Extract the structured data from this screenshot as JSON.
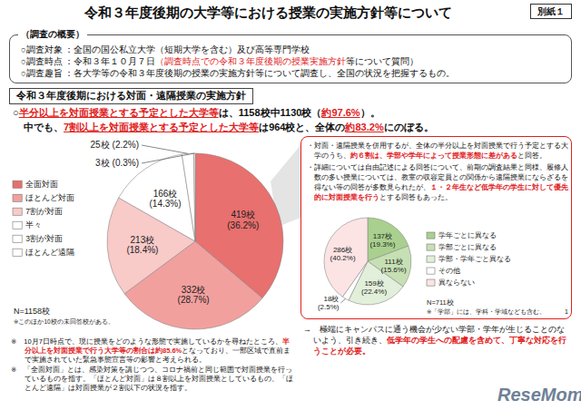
{
  "header": {
    "title": "令和３年度後期の大学等における授業の実施方針等について",
    "tag": "別紙１"
  },
  "overview": {
    "heading": "（調査の概要）",
    "lines": [
      {
        "runs": [
          {
            "text": "○調査対象 ：全国の国公私立大学（短期大学を含む）及び高等専門学校"
          }
        ]
      },
      {
        "runs": [
          {
            "text": "○調査時点 ：令和３年１０月７日"
          },
          {
            "text": "（調査時点での令和３年度後期の授業実施方針",
            "color": "red"
          },
          {
            "text": "等について質問）"
          }
        ]
      },
      {
        "runs": [
          {
            "text": "○調査趣旨 ：各大学等の令和３年度後期の授業の実施方針等について調査し、全国の状況を把握するもの。"
          }
        ]
      }
    ]
  },
  "section": {
    "label": "令和３年度後期における対面・遠隔授業の実施方針"
  },
  "highlights": [
    {
      "runs": [
        {
          "text": "○"
        },
        {
          "text": "半分以上を対面授業とする予定とした大学等",
          "color": "red"
        },
        {
          "text": "は、1158校中1130校（"
        },
        {
          "text": "約97.6%",
          "color": "red"
        },
        {
          "text": "）。"
        }
      ]
    },
    {
      "runs": [
        {
          "text": "中でも、"
        },
        {
          "text": "7割以上を対面授業とする予定とした大学等",
          "color": "red"
        },
        {
          "text": "は964校と、全体の"
        },
        {
          "text": "約83.2%",
          "color": "red"
        },
        {
          "text": "にのぼる。"
        }
      ]
    }
  ],
  "callout": {
    "bullets": [
      {
        "runs": [
          {
            "text": "・対面・遠隔授業を併用するが、全体の半分以上を対面授業で行う予定とする大学のうち、"
          },
          {
            "text": "約６割は、学部や学年によって授業形態に差がある",
            "color": "red"
          },
          {
            "text": "と回答。"
          }
        ]
      },
      {
        "runs": [
          {
            "text": "・詳細については自由記述による回答について、前期の調査結果と同様、履修人数の多い授業については、教室の収容定員との関係から遠隔授業にならざるを得ない等の回答が多数見られたが、"
          },
          {
            "text": "１・２年生など低学年の学生に対して優先的に対面授業を行う",
            "color": "red"
          },
          {
            "text": "とする回答もあった。"
          }
        ]
      }
    ],
    "conclusion": {
      "runs": [
        {
          "text": "→　極端にキャンパスに通う機会が少ない学部・学年が生じることのないよう、引き続き、"
        },
        {
          "text": "低学年の学生への配慮を含めて、丁寧な対応を行うことが必要。",
          "color": "red"
        }
      ]
    }
  },
  "notes": [
    {
      "runs": [
        {
          "text": "※　10月7日時点で、現に授業をどのような形態で実施しているかを尋ねたところ、"
        },
        {
          "text": "半分以上を対面授業で行う大学等の割合は約85.6%",
          "color": "red"
        },
        {
          "text": "となっており、一部区域で直前まで実施されていた緊急事態宣言等の影響と考えられる。"
        }
      ]
    },
    {
      "runs": [
        {
          "text": "※　「全面対面」とは、感染対策を講じつつ、コロナ禍前と同じ範囲で対面授業を行っているものを指す。「ほとんど対面」は８割以上を対面授業としているもの、「ほとんど遠隔」は対面授業が２割以下の状況を指す。"
        }
      ]
    }
  ],
  "page_number": "1",
  "watermark": "ReseMom",
  "chart_data": [
    {
      "type": "pie",
      "categories": [
        "全面対面",
        "ほとんど対面",
        "7割が対面",
        "半々",
        "3割が対面",
        "ほとんど遠隔"
      ],
      "values": [
        419,
        332,
        213,
        166,
        25,
        3
      ],
      "value_labels": [
        "419校",
        "332校",
        "213校",
        "166校",
        "25校",
        "3校"
      ],
      "percentages": [
        36.2,
        28.7,
        18.4,
        14.3,
        2.2,
        0.3
      ],
      "percentage_labels": [
        "(36.2%)",
        "(28.7%)",
        "(18.4%)",
        "(14.3%)",
        "(2.2%)",
        "(0.3%)"
      ],
      "colors": [
        "#e8706e",
        "#f2a09e",
        "#f8cac8",
        "#ffffff",
        "#ffffff",
        "#ffffff"
      ],
      "data_labels": true,
      "legend": "left",
      "annotations": [
        "N=1158校",
        "※このほか10校の未回答校がある。"
      ]
    },
    {
      "type": "pie",
      "categories": [
        "学年ごとに異なる",
        "学部ごとに異なる",
        "学部・学年ごと異なる",
        "その他",
        "異ならない"
      ],
      "values": [
        137,
        111,
        159,
        18,
        286
      ],
      "value_labels": [
        "137校",
        "111校",
        "159校",
        "18校",
        "286校"
      ],
      "percentages": [
        19.3,
        15.6,
        22.4,
        2.5,
        40.2
      ],
      "percentage_labels": [
        "(19.3%)",
        "(15.6%)",
        "(22.4%)",
        "(2.5%)",
        "(40.2%)"
      ],
      "colors": [
        "#a9d08e",
        "#c6e0b4",
        "#e2efda",
        "#ffffff",
        "#fce4e4"
      ],
      "data_labels": true,
      "legend": "right",
      "annotations": [
        "N=711校",
        "※「学部」には、学科・学域なども含む。"
      ]
    }
  ]
}
